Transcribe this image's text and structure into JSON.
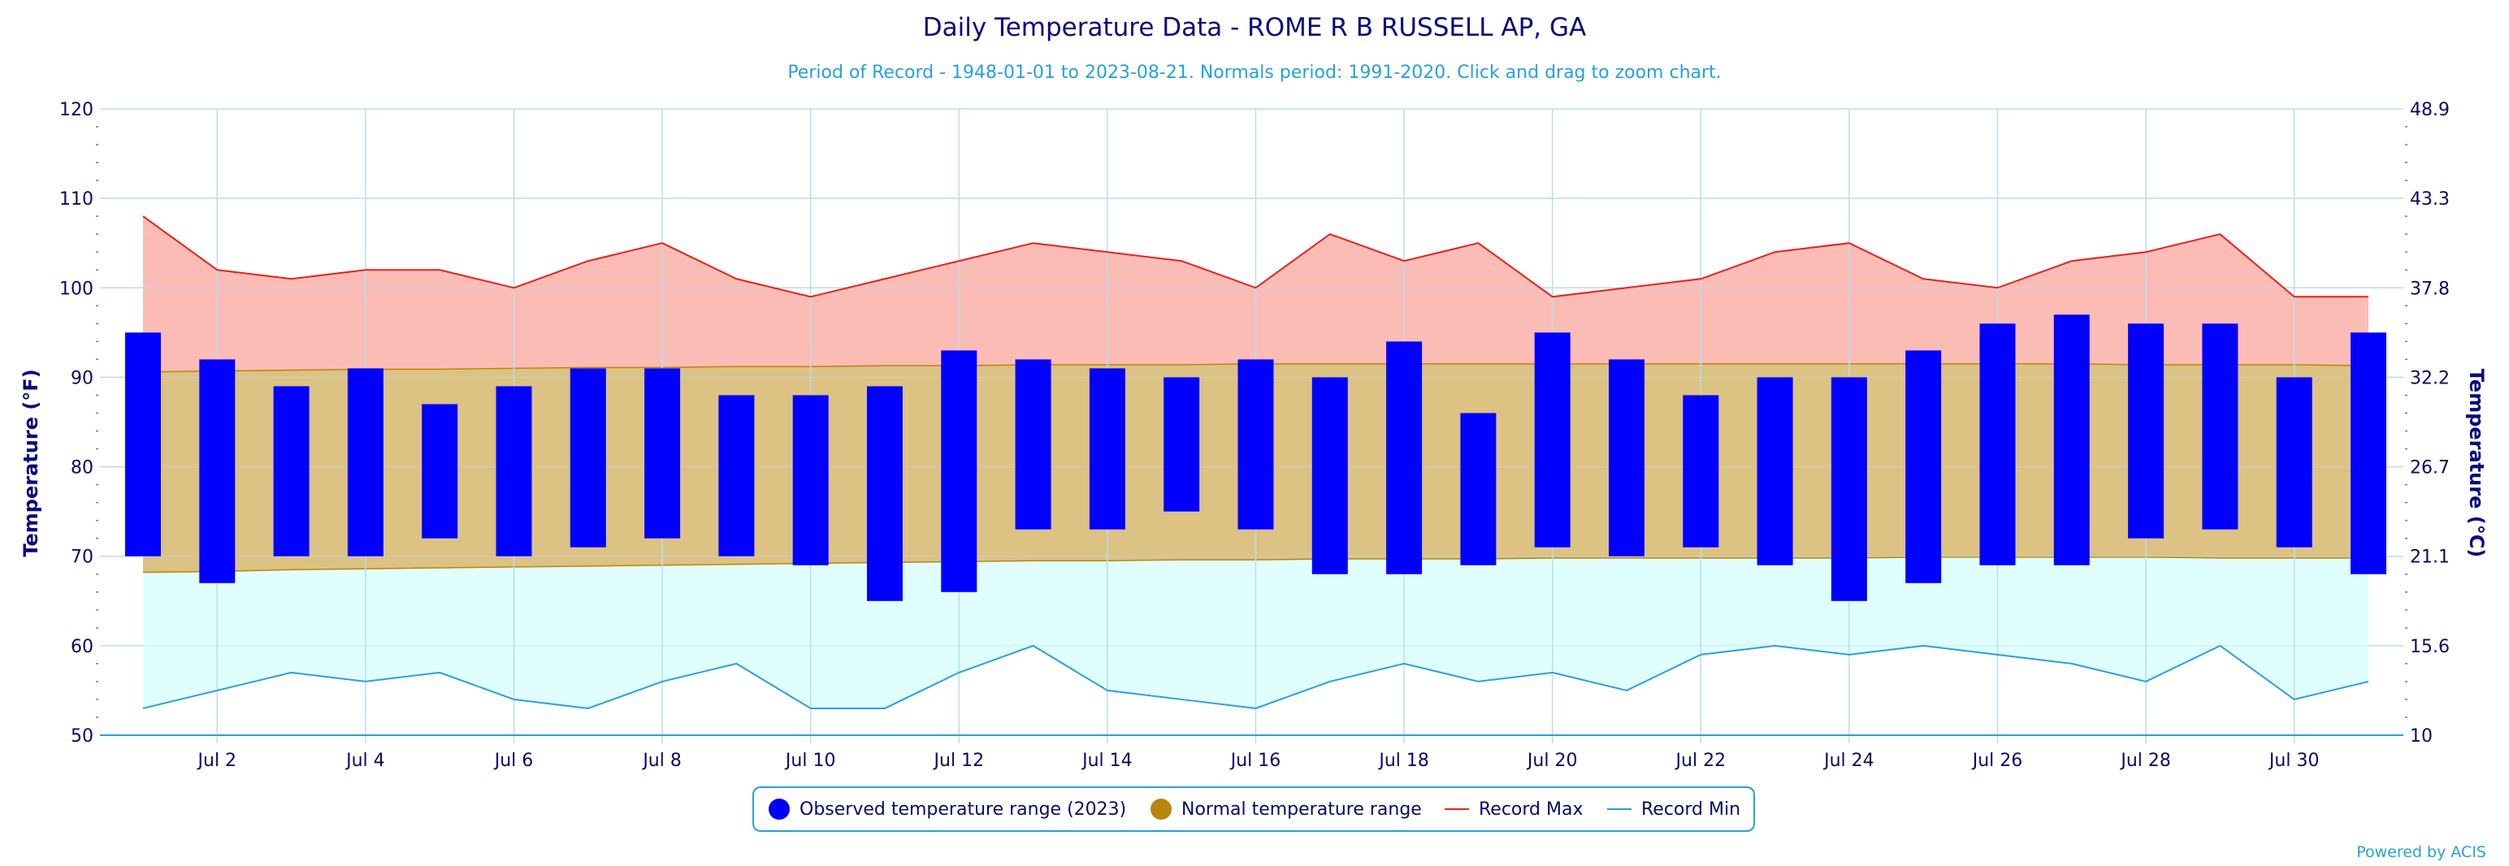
{
  "title": "Daily Temperature Data - ROME R B RUSSELL AP, GA",
  "subtitle": "Period of Record - 1948-01-01 to 2023-08-21. Normals period: 1991-2020. Click and drag to zoom chart.",
  "credit": "Powered by ACIS",
  "colors": {
    "title": "#0a0a80",
    "subtitle": "#27a1dc",
    "observed": "#0000ff",
    "normal_fill": "#dcc283",
    "normal_line": "#b8860b",
    "record_max_fill": "#fbbcb6",
    "record_max_line": "#e8221c",
    "record_min_fill": "#e0fefe",
    "record_min_line": "#27a1dc",
    "grid": "#b9ddf0",
    "axis_text": "#0a0a66"
  },
  "legend": [
    {
      "label": "Observed temperature range (2023)",
      "icon": "circle",
      "color": "#0000ff"
    },
    {
      "label": "Normal temperature range",
      "icon": "circle",
      "color": "#b8860b"
    },
    {
      "label": "Record Max",
      "icon": "line",
      "color": "#e8221c"
    },
    {
      "label": "Record Min",
      "icon": "line",
      "color": "#27a1dc"
    }
  ],
  "chart_data": {
    "type": "bar",
    "title": "Daily Temperature Data - ROME R B RUSSELL AP, GA",
    "xlabel": "",
    "ylabel": "Temperature (°F)",
    "ylabel_right": "Temperature (°C)",
    "ylim": [
      50,
      120
    ],
    "yticks": [
      50,
      60,
      70,
      80,
      90,
      100,
      110,
      120
    ],
    "yticks_right": [
      "10",
      "15.6",
      "21.1",
      "26.7",
      "32.2",
      "37.8",
      "43.3",
      "48.9"
    ],
    "grid": true,
    "legend_position": "bottom",
    "x_days": [
      1,
      2,
      3,
      4,
      5,
      6,
      7,
      8,
      9,
      10,
      11,
      12,
      13,
      14,
      15,
      16,
      17,
      18,
      19,
      20,
      21,
      22,
      23,
      24,
      25,
      26,
      27,
      28,
      29,
      30,
      31
    ],
    "x_tick_labels": [
      "Jul 2",
      "Jul 4",
      "Jul 6",
      "Jul 8",
      "Jul 10",
      "Jul 12",
      "Jul 14",
      "Jul 16",
      "Jul 18",
      "Jul 20",
      "Jul 22",
      "Jul 24",
      "Jul 26",
      "Jul 28",
      "Jul 30"
    ],
    "x_tick_days": [
      2,
      4,
      6,
      8,
      10,
      12,
      14,
      16,
      18,
      20,
      22,
      24,
      26,
      28,
      30
    ],
    "series": [
      {
        "name": "Observed temperature range (2023)",
        "type": "columnrange",
        "low": [
          70,
          67,
          70,
          70,
          72,
          70,
          71,
          72,
          70,
          69,
          65,
          66,
          73,
          73,
          75,
          73,
          68,
          68,
          69,
          71,
          70,
          71,
          69,
          65,
          67,
          69,
          69,
          72,
          73,
          71,
          68
        ],
        "high": [
          95,
          92,
          89,
          91,
          87,
          89,
          91,
          91,
          88,
          88,
          89,
          93,
          92,
          91,
          90,
          92,
          90,
          94,
          86,
          95,
          92,
          88,
          90,
          90,
          93,
          96,
          97,
          96,
          96,
          90,
          95
        ]
      },
      {
        "name": "Normal temperature range",
        "type": "arearange",
        "low": [
          68.2,
          68.3,
          68.5,
          68.6,
          68.7,
          68.8,
          68.9,
          69.0,
          69.1,
          69.2,
          69.3,
          69.4,
          69.5,
          69.5,
          69.6,
          69.6,
          69.7,
          69.7,
          69.7,
          69.8,
          69.8,
          69.8,
          69.8,
          69.8,
          69.9,
          69.9,
          69.9,
          69.9,
          69.8,
          69.8,
          69.8
        ],
        "high": [
          90.6,
          90.7,
          90.8,
          90.9,
          90.9,
          91.0,
          91.1,
          91.1,
          91.2,
          91.2,
          91.3,
          91.3,
          91.4,
          91.4,
          91.4,
          91.5,
          91.5,
          91.5,
          91.5,
          91.5,
          91.5,
          91.5,
          91.5,
          91.5,
          91.5,
          91.5,
          91.5,
          91.4,
          91.4,
          91.4,
          91.3
        ]
      },
      {
        "name": "Record Max",
        "type": "line",
        "values": [
          108,
          102,
          101,
          102,
          102,
          100,
          103,
          105,
          101,
          99,
          101,
          103,
          105,
          104,
          103,
          100,
          106,
          103,
          105,
          99,
          100,
          101,
          104,
          105,
          101,
          100,
          103,
          104,
          106,
          99,
          99
        ]
      },
      {
        "name": "Record Min",
        "type": "line",
        "values": [
          53,
          55,
          57,
          56,
          57,
          54,
          53,
          56,
          58,
          53,
          53,
          57,
          60,
          55,
          54,
          53,
          56,
          58,
          56,
          57,
          55,
          59,
          60,
          59,
          60,
          59,
          58,
          56,
          60,
          54,
          56
        ]
      }
    ]
  }
}
